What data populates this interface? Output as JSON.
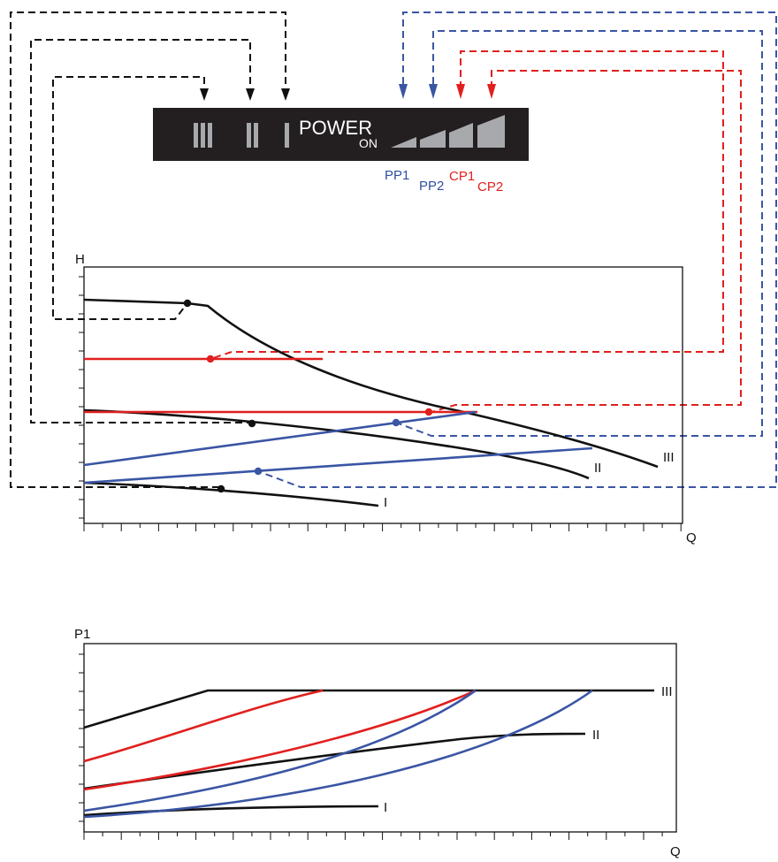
{
  "panel": {
    "speed_labels": [
      "III",
      "II",
      "I"
    ],
    "power_label": "POWER",
    "on_label": "ON",
    "mode_labels": [
      {
        "text": "PP1",
        "color": "#2e4fa0"
      },
      {
        "text": "PP2",
        "color": "#2e4fa0"
      },
      {
        "text": "CP1",
        "color": "#e0201e"
      },
      {
        "text": "CP2",
        "color": "#e0201e"
      }
    ]
  },
  "colors": {
    "black": "#111111",
    "blue": "#3a55a4",
    "red": "#e0201e",
    "panel_bg": "#231f20",
    "bar_fill": "#a7a9ac"
  },
  "head_chart": {
    "y_axis_label": "H",
    "x_axis_label": "Q",
    "curve_labels": [
      "III",
      "II",
      "I"
    ]
  },
  "power_chart": {
    "y_axis_label": "P1",
    "x_axis_label": "Q",
    "curve_labels": [
      "III",
      "II",
      "I"
    ]
  }
}
